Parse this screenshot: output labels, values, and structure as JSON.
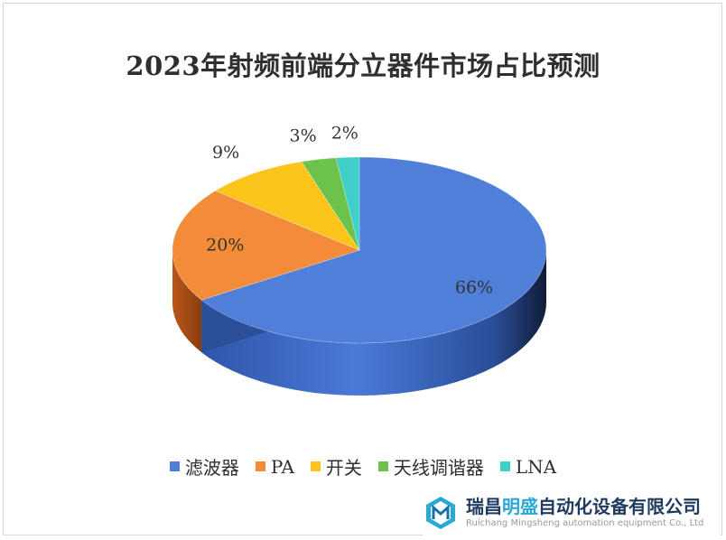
{
  "chart_data": {
    "type": "pie",
    "title": "2023年射频前端分立器件市场占比预测",
    "categories": [
      "滤波器",
      "PA",
      "开关",
      "天线调谐器",
      "LNA"
    ],
    "values": [
      66,
      20,
      9,
      3,
      2
    ],
    "labels": [
      "66%",
      "20%",
      "9%",
      "3%",
      "2%"
    ],
    "colors": [
      "#4f7fd9",
      "#f28c38",
      "#fbc41a",
      "#6cc24a",
      "#3fd0c9"
    ],
    "legend_position": "bottom",
    "style": "3d-pie"
  },
  "watermark": {
    "name_part1": "瑞昌",
    "name_highlight": "明盛",
    "name_part2": "自动化设备有限公司",
    "english": "Ruichang Mingsheng automation equipment Co., Ltd"
  }
}
